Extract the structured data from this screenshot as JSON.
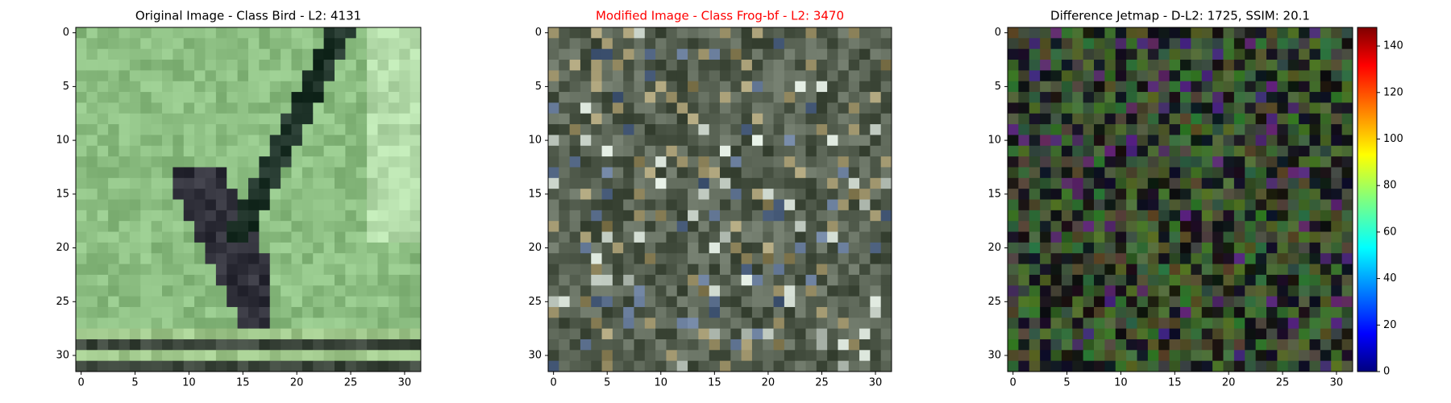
{
  "chart_data": [
    {
      "type": "image",
      "title": "Original Image - Class Bird - L2: 4131",
      "title_color": "#000000",
      "xlim": [
        -0.5,
        31.5
      ],
      "ylim": [
        31.5,
        -0.5
      ],
      "xticks": [
        0,
        5,
        10,
        15,
        20,
        25,
        30
      ],
      "yticks": [
        0,
        5,
        10,
        15,
        20,
        25,
        30
      ]
    },
    {
      "type": "image",
      "title": "Modified Image - Class Frog-bf - L2: 3470",
      "title_color": "#ff0000",
      "xlim": [
        -0.5,
        31.5
      ],
      "ylim": [
        31.5,
        -0.5
      ],
      "xticks": [
        0,
        5,
        10,
        15,
        20,
        25,
        30
      ],
      "yticks": [
        0,
        5,
        10,
        15,
        20,
        25,
        30
      ]
    },
    {
      "type": "image",
      "title": "Difference Jetmap - D-L2: 1725, SSIM: 20.1",
      "title_color": "#000000",
      "xlim": [
        -0.5,
        31.5
      ],
      "ylim": [
        31.5,
        -0.5
      ],
      "xticks": [
        0,
        5,
        10,
        15,
        20,
        25,
        30
      ],
      "yticks": [
        0,
        5,
        10,
        15,
        20,
        25,
        30
      ],
      "colorbar": {
        "cmap": "jet",
        "lim": [
          0,
          148
        ],
        "ticks": [
          0,
          20,
          40,
          60,
          80,
          100,
          120,
          140
        ]
      }
    }
  ]
}
